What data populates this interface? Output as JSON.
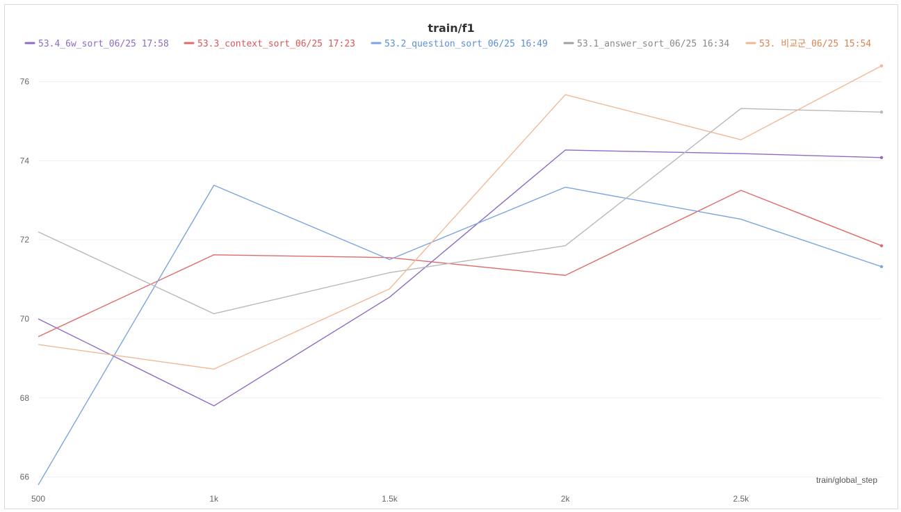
{
  "chart_data": {
    "type": "line",
    "title": "train/f1",
    "xlabel": "train/global_step",
    "ylabel": "",
    "xlim": [
      500,
      2900
    ],
    "ylim": [
      65.8,
      76.8
    ],
    "xticks": [
      500,
      1000,
      1500,
      2000,
      2500
    ],
    "xtick_labels": [
      "500",
      "1k",
      "1.5k",
      "2k",
      "2.5k"
    ],
    "yticks": [
      66,
      68,
      70,
      72,
      74,
      76
    ],
    "ytick_labels": [
      "66",
      "68",
      "70",
      "72",
      "74",
      "76"
    ],
    "grid": true,
    "legend_position": "top",
    "x": [
      500,
      1000,
      1500,
      2000,
      2500,
      2900
    ],
    "series": [
      {
        "name": "53.4_6w_sort_06/25 17:58",
        "color": "#8e6bc4",
        "text_color": "#8e6bc4",
        "values": [
          70.0,
          67.8,
          70.55,
          74.27,
          74.18,
          74.08
        ]
      },
      {
        "name": "53.3_context_sort_06/25 17:23",
        "color": "#e06a6a",
        "text_color": "#df5555",
        "values": [
          69.55,
          71.62,
          71.55,
          71.1,
          73.25,
          71.85
        ]
      },
      {
        "name": "53.2_question_sort_06/25 16:49",
        "color": "#7ba4e0",
        "text_color": "#5a8fd8",
        "values": [
          65.8,
          73.38,
          71.5,
          73.33,
          72.52,
          71.32
        ]
      },
      {
        "name": "53.1_answer_sort_06/25 16:34",
        "color": "#b8b8b8",
        "text_color": "#888888",
        "values": [
          72.2,
          70.13,
          71.17,
          71.85,
          75.32,
          75.23
        ]
      },
      {
        "name": "53. 비교군_06/25 15:54",
        "color": "#f2b896",
        "text_color": "#d9834f",
        "values": [
          69.35,
          68.73,
          70.76,
          75.67,
          74.53,
          76.4
        ]
      }
    ]
  }
}
